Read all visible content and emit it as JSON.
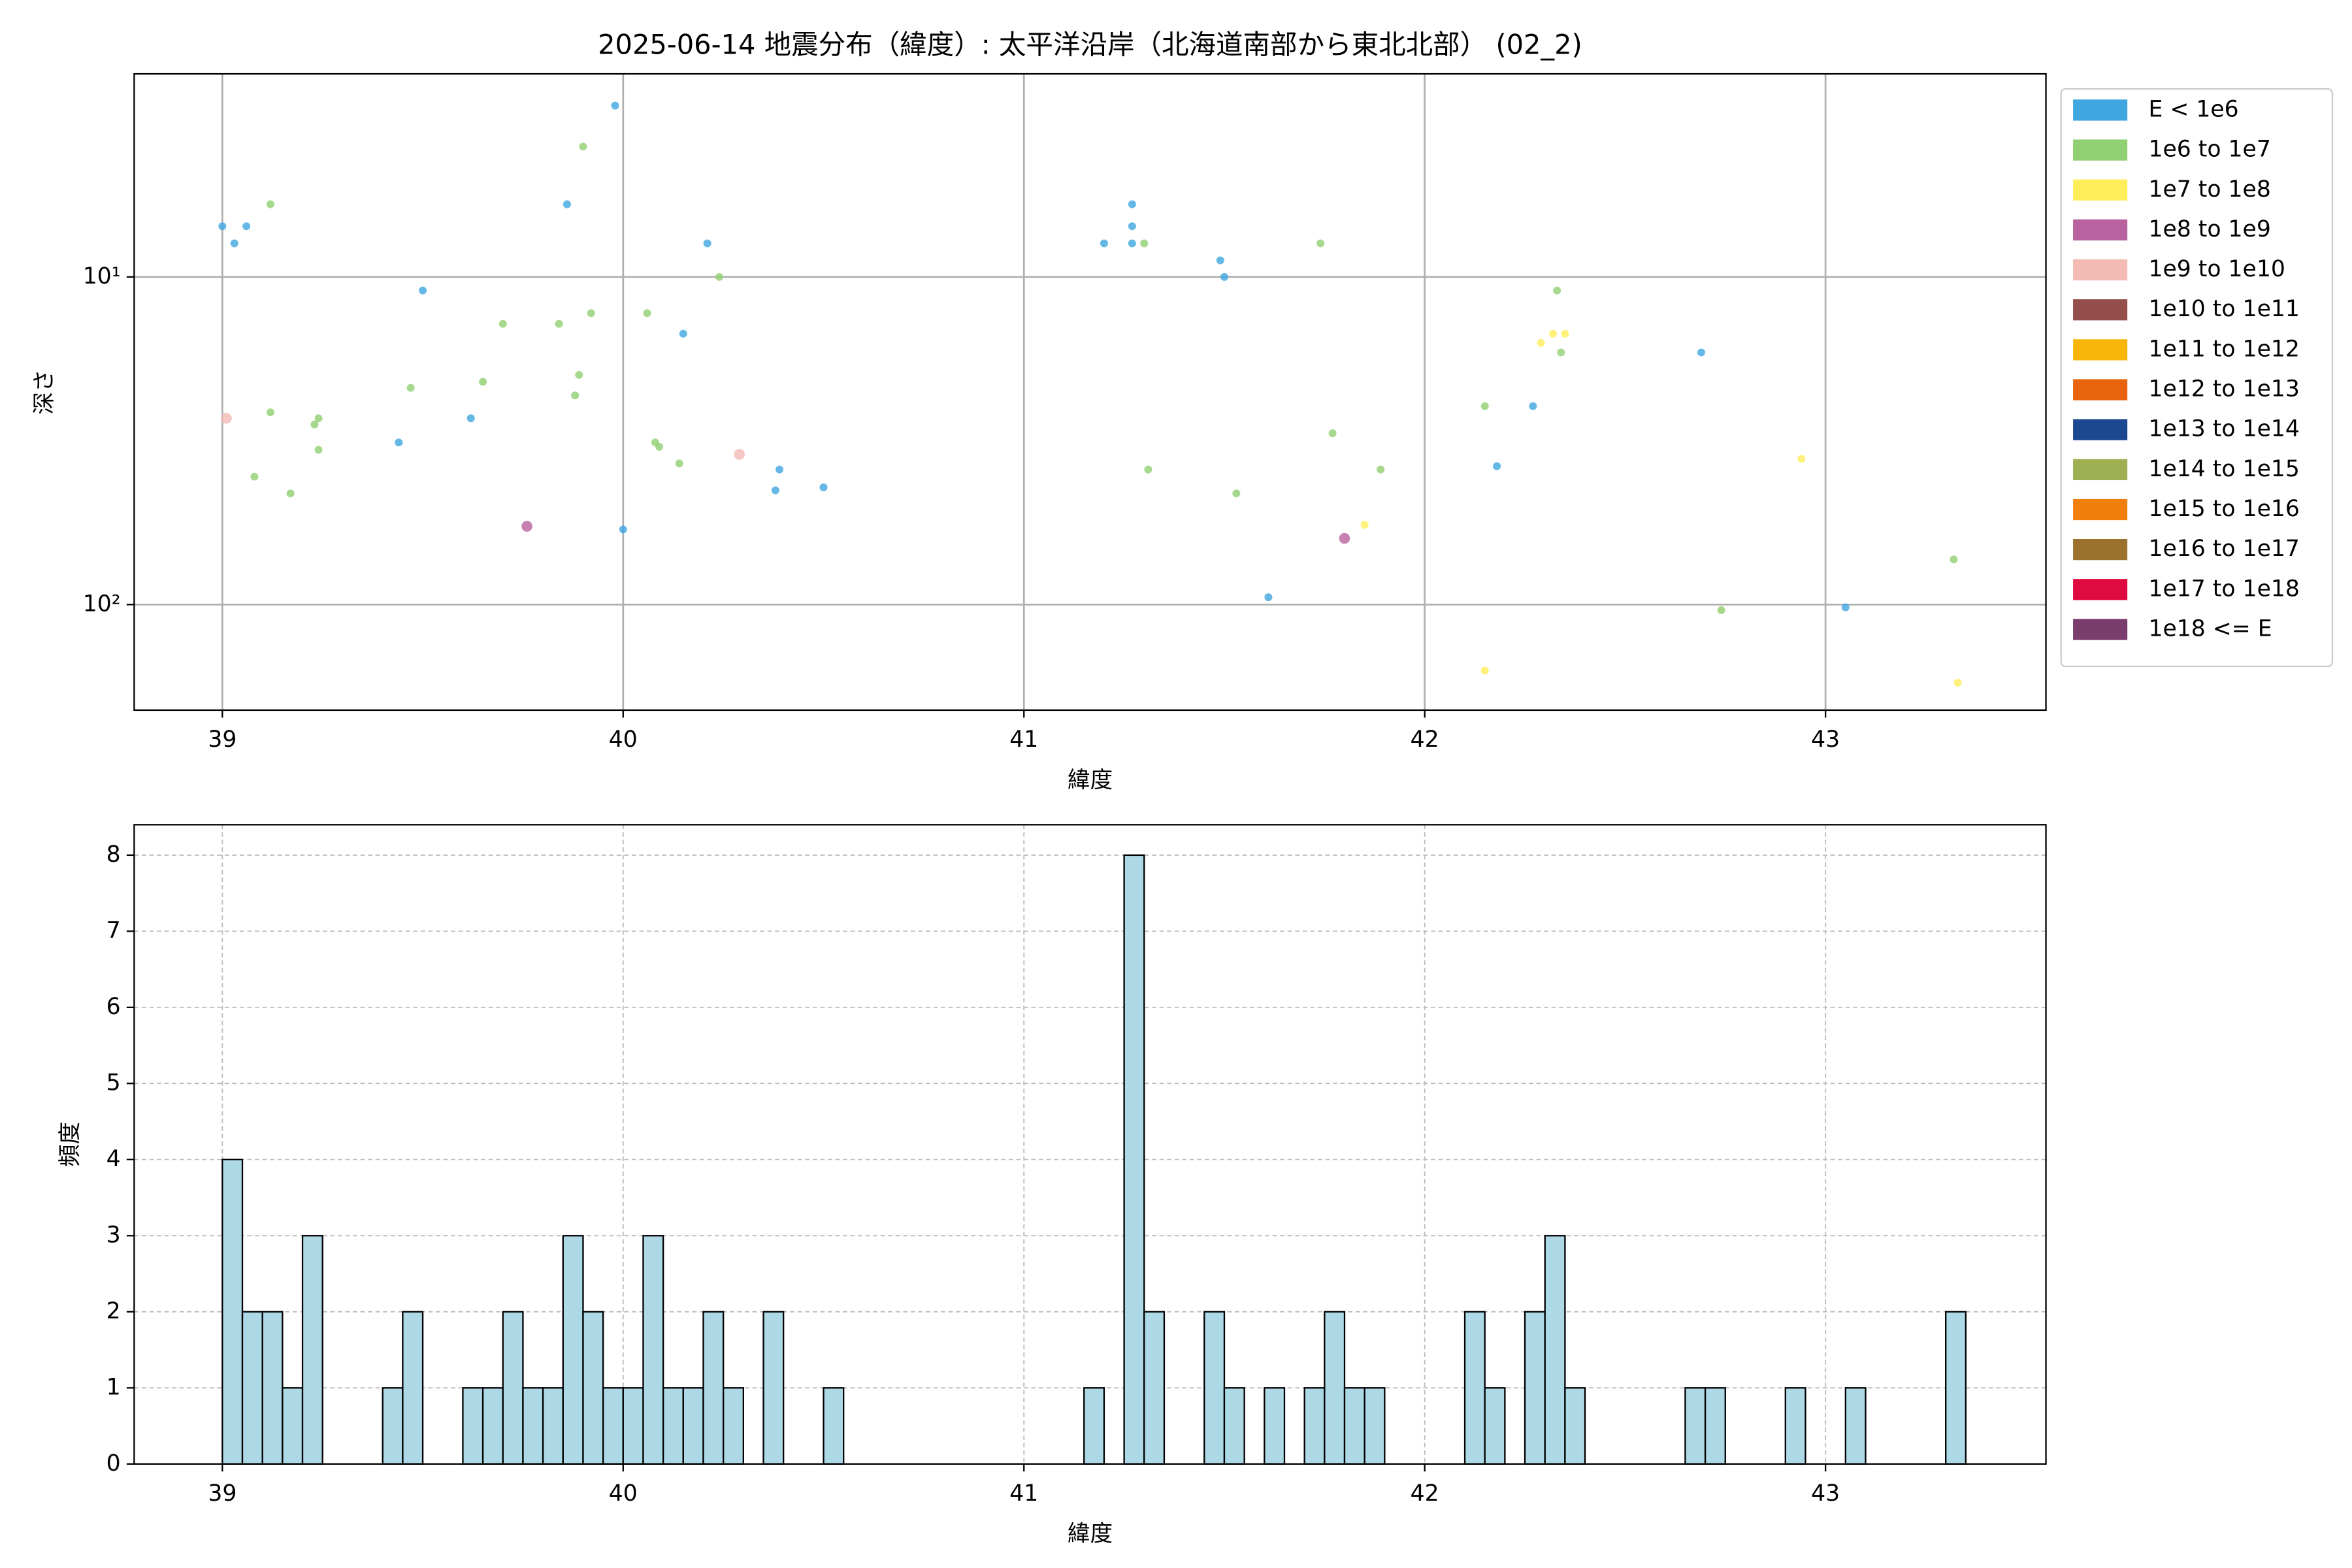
{
  "chart_data": [
    {
      "type": "scatter",
      "title": "2025-06-14 地震分布（緯度）: 太平洋沿岸（北海道南部から東北北部） (02_2)",
      "xlabel": "緯度",
      "ylabel": "深さ",
      "xlim": [
        38.78,
        43.55
      ],
      "xticks": [
        39,
        40,
        41,
        42,
        43
      ],
      "ylim": [
        2.4,
        210
      ],
      "yscale": "log",
      "y_inverted": true,
      "yticks": [
        {
          "value": 10,
          "label": "10¹"
        },
        {
          "value": 100,
          "label": "10²"
        }
      ],
      "grid": true,
      "legend": "outside upper right",
      "series": [
        {
          "name": "E < 1e6",
          "color": "#3fa6e0",
          "x": [
            39.0,
            39.03,
            39.06,
            39.5,
            39.44,
            39.62,
            39.86,
            39.98,
            40.0,
            40.15,
            40.21,
            40.38,
            40.39,
            40.5,
            41.2,
            41.27,
            41.27,
            41.27,
            41.49,
            41.5,
            41.61,
            42.18,
            42.27,
            42.69,
            43.05
          ],
          "values": [
            7.0,
            7.9,
            7.0,
            11.0,
            32,
            27,
            6.0,
            3.0,
            59,
            14.9,
            7.9,
            44.8,
            38.7,
            43.9,
            7.9,
            6.0,
            7.0,
            7.9,
            8.9,
            10,
            95,
            37.8,
            24.8,
            17.0,
            102
          ]
        },
        {
          "name": "1e6 to 1e7",
          "color": "#90cf72",
          "x": [
            39.12,
            39.12,
            39.08,
            39.17,
            39.23,
            39.24,
            39.24,
            39.47,
            39.65,
            39.7,
            39.84,
            39.92,
            39.89,
            39.88,
            39.9,
            40.06,
            40.08,
            40.09,
            40.14,
            40.24,
            41.3,
            41.31,
            41.53,
            41.74,
            41.77,
            41.89,
            42.15,
            42.33,
            42.34,
            42.74,
            43.32
          ],
          "values": [
            6.0,
            25.9,
            40.7,
            45.8,
            28.2,
            27.0,
            33.7,
            21.8,
            20.9,
            13.9,
            13.9,
            12.9,
            19.9,
            23.0,
            4.0,
            12.9,
            32,
            33.0,
            37.1,
            10,
            7.9,
            38.7,
            45.8,
            7.9,
            30.0,
            38.7,
            24.8,
            11,
            17,
            104,
            72.8
          ]
        },
        {
          "name": "1e7 to 1e8",
          "color": "#ffee5a",
          "x": [
            42.29,
            42.32,
            42.35,
            41.85,
            42.15,
            42.94,
            43.33
          ],
          "values": [
            15.9,
            14.9,
            14.9,
            57.1,
            159,
            35.9,
            173
          ]
        },
        {
          "name": "1e8 to 1e9",
          "color": "#b8629f",
          "x": [
            39.76,
            41.8
          ],
          "values": [
            57.7,
            62.8
          ]
        },
        {
          "name": "1e9 to 1e10",
          "color": "#f4bab4",
          "x": [
            39.01,
            40.29
          ],
          "values": [
            27,
            34.8
          ]
        },
        {
          "name": "1e10 to 1e11",
          "color": "#954f4a",
          "x": [],
          "values": []
        },
        {
          "name": "1e11 to 1e12",
          "color": "#f9b60a",
          "x": [],
          "values": []
        },
        {
          "name": "1e12 to 1e13",
          "color": "#e9630e",
          "x": [],
          "values": []
        },
        {
          "name": "1e13 to 1e14",
          "color": "#1c4891",
          "x": [],
          "values": []
        },
        {
          "name": "1e14 to 1e15",
          "color": "#9eb052",
          "x": [],
          "values": []
        },
        {
          "name": "1e15 to 1e16",
          "color": "#f17f0d",
          "x": [],
          "values": []
        },
        {
          "name": "1e16 to 1e17",
          "color": "#9a722d",
          "x": [],
          "values": []
        },
        {
          "name": "1e17 to 1e18",
          "color": "#df0a3f",
          "x": [],
          "values": []
        },
        {
          "name": "1e18 <= E",
          "color": "#7b3d6d",
          "x": [],
          "values": []
        }
      ]
    },
    {
      "type": "histogram",
      "xlabel": "緯度",
      "ylabel": "頻度",
      "xlim": [
        38.78,
        43.55
      ],
      "xticks": [
        39,
        40,
        41,
        42,
        43
      ],
      "ylim": [
        0,
        8.4
      ],
      "yticks": [
        0,
        1,
        2,
        3,
        4,
        5,
        6,
        7,
        8
      ],
      "grid": "dashed",
      "color": "#add8e6",
      "edgecolor": "#000000",
      "bins": [
        39.0,
        39.05,
        39.1,
        39.15,
        39.2,
        39.25,
        39.3,
        39.35,
        39.4,
        39.45,
        39.5,
        39.55,
        39.6,
        39.65,
        39.7,
        39.75,
        39.8,
        39.85,
        39.9,
        39.95,
        40.0,
        40.05,
        40.1,
        40.15,
        40.2,
        40.25,
        40.3,
        40.35,
        40.4,
        40.45,
        40.5,
        40.55,
        40.6,
        40.65,
        40.7,
        40.75,
        40.8,
        40.85,
        40.9,
        40.95,
        41.0,
        41.05,
        41.1,
        41.15,
        41.2,
        41.25,
        41.3,
        41.35,
        41.4,
        41.45,
        41.5,
        41.55,
        41.6,
        41.65,
        41.7,
        41.75,
        41.8,
        41.85,
        41.9,
        41.95,
        42.0,
        42.05,
        42.1,
        42.15,
        42.2,
        42.25,
        42.3,
        42.35,
        42.4,
        42.45,
        42.5,
        42.55,
        42.6,
        42.65,
        42.7,
        42.75,
        42.8,
        42.85,
        42.9,
        42.95,
        43.0,
        43.05,
        43.1,
        43.15,
        43.2,
        43.25,
        43.3,
        43.35
      ],
      "counts": [
        4,
        2,
        2,
        1,
        3,
        0,
        0,
        0,
        1,
        2,
        0,
        0,
        1,
        1,
        2,
        1,
        1,
        3,
        2,
        1,
        1,
        3,
        1,
        1,
        2,
        1,
        0,
        2,
        0,
        0,
        1,
        0,
        0,
        0,
        0,
        0,
        0,
        0,
        0,
        0,
        0,
        0,
        0,
        1,
        0,
        8,
        2,
        0,
        0,
        2,
        1,
        0,
        1,
        0,
        1,
        2,
        1,
        1,
        0,
        0,
        0,
        0,
        2,
        1,
        0,
        2,
        3,
        1,
        0,
        0,
        0,
        0,
        0,
        1,
        1,
        0,
        0,
        0,
        1,
        0,
        0,
        1,
        0,
        0,
        0,
        0,
        2
      ]
    }
  ]
}
